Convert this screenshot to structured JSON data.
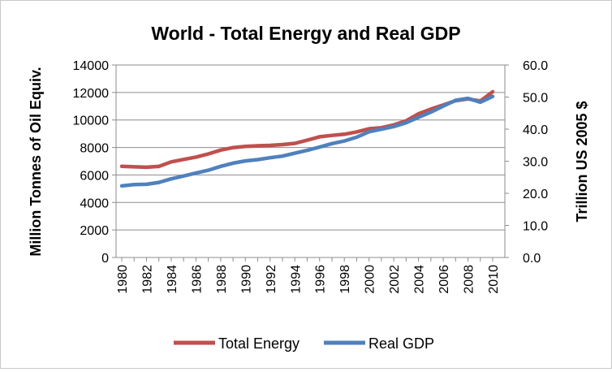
{
  "chart_data": {
    "type": "line",
    "title": "World - Total Energy and Real GDP",
    "ylabel_left": "Million Tonnes of Oil Equiv.",
    "ylabel_right": "Trillion US 2005 $",
    "xlabel": "",
    "ylim_left": [
      0,
      14000
    ],
    "ylim_right": [
      0,
      60
    ],
    "yticks_left": [
      "0",
      "2000",
      "4000",
      "6000",
      "8000",
      "10000",
      "12000",
      "14000"
    ],
    "yticks_right": [
      "0.0",
      "10.0",
      "20.0",
      "30.0",
      "40.0",
      "50.0",
      "60.0"
    ],
    "x": [
      1980,
      1981,
      1982,
      1983,
      1984,
      1985,
      1986,
      1987,
      1988,
      1989,
      1990,
      1991,
      1992,
      1993,
      1994,
      1995,
      1996,
      1997,
      1998,
      1999,
      2000,
      2001,
      2002,
      2003,
      2004,
      2005,
      2006,
      2007,
      2008,
      2009,
      2010
    ],
    "xtick_labels": [
      "1980",
      "1982",
      "1984",
      "1986",
      "1988",
      "1990",
      "1992",
      "1994",
      "1996",
      "1998",
      "2000",
      "2002",
      "2004",
      "2006",
      "2008",
      "2010"
    ],
    "grid": true,
    "legend_position": "bottom",
    "series": [
      {
        "name": "Total Energy",
        "axis": "left",
        "color": "#C0504D",
        "values": [
          6630,
          6590,
          6560,
          6620,
          6950,
          7130,
          7300,
          7530,
          7810,
          7990,
          8080,
          8120,
          8150,
          8210,
          8300,
          8530,
          8780,
          8880,
          8960,
          9130,
          9360,
          9440,
          9640,
          9940,
          10450,
          10790,
          11090,
          11400,
          11530,
          11380,
          12050
        ]
      },
      {
        "name": "Real GDP",
        "axis": "right",
        "color": "#4F81BD",
        "values": [
          22.3,
          22.7,
          22.8,
          23.4,
          24.5,
          25.4,
          26.3,
          27.2,
          28.4,
          29.4,
          30.1,
          30.5,
          31.1,
          31.6,
          32.5,
          33.4,
          34.4,
          35.5,
          36.3,
          37.5,
          39.2,
          40.0,
          40.8,
          42.0,
          43.7,
          45.3,
          47.2,
          49.0,
          49.6,
          48.4,
          50.2
        ]
      }
    ]
  }
}
